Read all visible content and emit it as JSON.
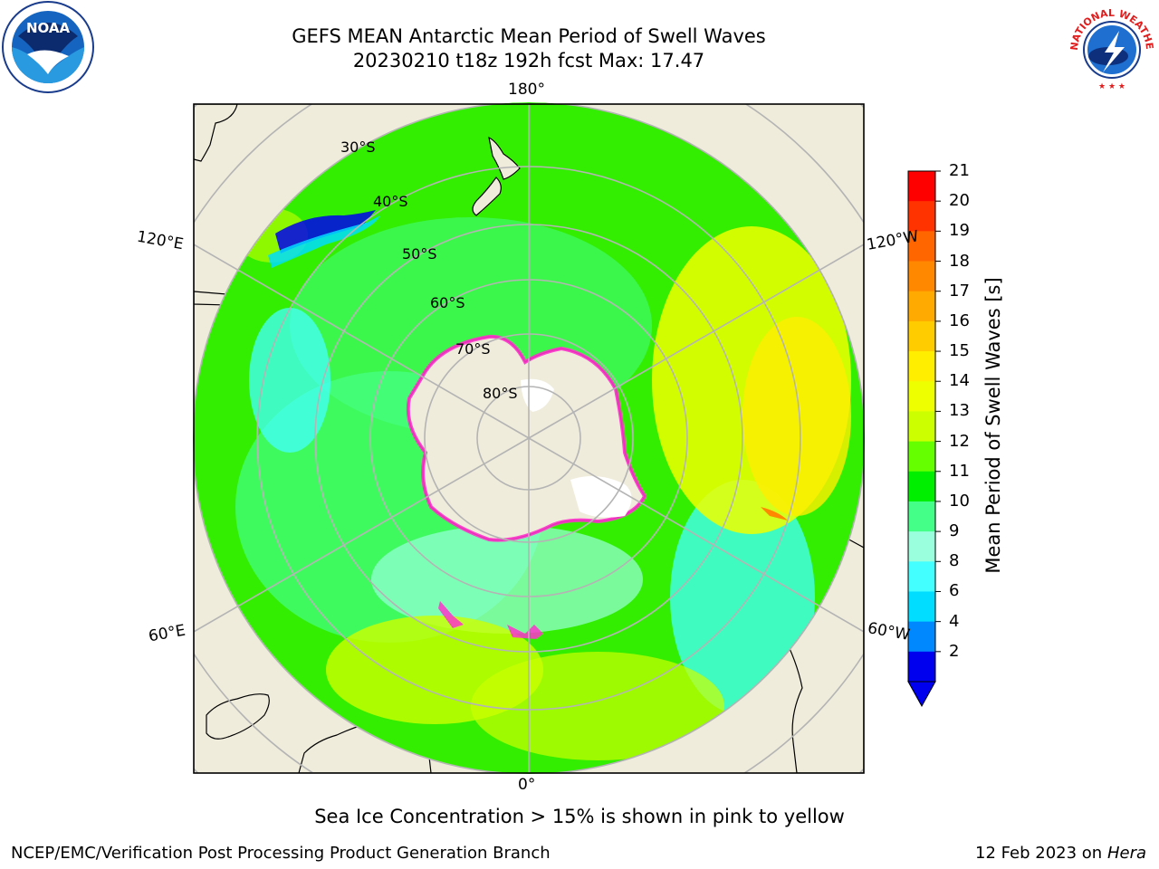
{
  "header": {
    "title_line1": "GEFS MEAN Antarctic Mean Period of Swell Waves",
    "title_line2": "20230210 t18z 192h fcst   Max: 17.47"
  },
  "logos": {
    "left": {
      "icon": "noaa-logo-icon",
      "text": "NOAA"
    },
    "right": {
      "icon": "nws-logo-icon",
      "text": "NATIONAL WEATHER SERVICE"
    }
  },
  "map": {
    "projection": "south-polar-stereographic",
    "lon_labels": {
      "top": "180°",
      "bottom": "0°",
      "left_upper": "120°E",
      "left_lower": "60°E",
      "right_upper": "120°W",
      "right_lower": "60°W"
    },
    "lat_labels": [
      "30°S",
      "40°S",
      "50°S",
      "60°S",
      "70°S",
      "80°S"
    ],
    "colors": {
      "land": "#efecdc",
      "ice_edge": "#ff33cc",
      "grid": "#b4b4b4"
    }
  },
  "colorbar": {
    "title": "Mean Period of Swell Waves [s]",
    "ticks": [
      "21",
      "20",
      "19",
      "18",
      "17",
      "16",
      "15",
      "14",
      "13",
      "12",
      "11",
      "10",
      "9",
      "8",
      "6",
      "4",
      "2"
    ],
    "colors": [
      "#ff0000",
      "#ff3300",
      "#ff6600",
      "#ff8800",
      "#ffaa00",
      "#ffcc00",
      "#ffee00",
      "#eeff00",
      "#ccff00",
      "#66ff00",
      "#00ee00",
      "#44ff88",
      "#99ffdd",
      "#44ffff",
      "#00ddff",
      "#0088ff",
      "#0000ee"
    ]
  },
  "footer": {
    "note": "Sea Ice Concentration > 15% is shown in pink to yellow",
    "credit_left": "NCEP/EMC/Verification Post Processing Product Generation Branch",
    "credit_date": "12 Feb 2023 on",
    "credit_host": "Hera"
  }
}
